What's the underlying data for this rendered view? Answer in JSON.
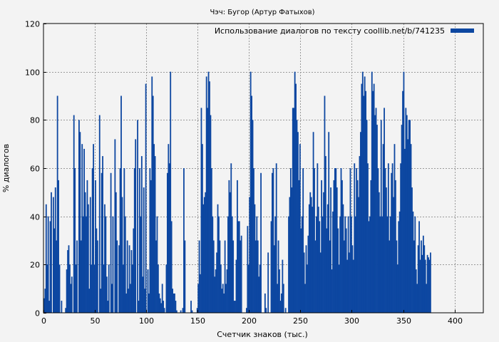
{
  "chart_data": {
    "type": "bar",
    "title": "Чэч: Бугор (Артур Фатыхов)",
    "xlabel": "Счетчик знаков (тыс.)",
    "ylabel": "% диалогов",
    "xlim": [
      0,
      428
    ],
    "ylim": [
      0,
      120
    ],
    "xticks": [
      "0",
      "50",
      "100",
      "150",
      "200",
      "250",
      "300",
      "350",
      "400"
    ],
    "xtick_values": [
      0,
      50,
      100,
      150,
      200,
      250,
      300,
      350,
      400
    ],
    "yticks": [
      "0",
      "20",
      "40",
      "60",
      "80",
      "100",
      "120"
    ],
    "ytick_values": [
      0,
      20,
      40,
      60,
      80,
      100,
      120
    ],
    "grid": true,
    "legend_position": "top-right",
    "series": [
      {
        "name": "Использование диалогов по тексту coollib.net/b/741235",
        "color": "#0d47a1",
        "x_start": 0,
        "x_step": 1,
        "values": [
          6,
          10,
          45,
          20,
          40,
          5,
          38,
          50,
          0,
          48,
          35,
          52,
          30,
          90,
          55,
          20,
          0,
          5,
          0,
          0,
          0,
          2,
          18,
          26,
          28,
          20,
          12,
          15,
          0,
          82,
          60,
          20,
          30,
          0,
          80,
          75,
          30,
          70,
          40,
          68,
          50,
          40,
          55,
          45,
          10,
          48,
          20,
          60,
          70,
          20,
          55,
          35,
          30,
          0,
          82,
          10,
          58,
          65,
          20,
          45,
          40,
          15,
          5,
          20,
          0,
          58,
          12,
          40,
          0,
          72,
          50,
          30,
          0,
          28,
          60,
          90,
          48,
          20,
          60,
          40,
          8,
          30,
          10,
          28,
          12,
          26,
          20,
          35,
          60,
          72,
          0,
          80,
          5,
          60,
          40,
          65,
          15,
          52,
          10,
          95,
          0,
          18,
          8,
          60,
          55,
          98,
          90,
          70,
          65,
          30,
          40,
          20,
          8,
          6,
          4,
          12,
          5,
          2,
          0,
          20,
          58,
          70,
          62,
          100,
          38,
          10,
          8,
          8,
          5,
          1,
          0,
          0,
          0,
          1,
          0,
          2,
          60,
          30,
          0,
          0,
          0,
          0,
          0,
          5,
          1,
          0,
          0,
          0,
          0,
          2,
          12,
          30,
          16,
          85,
          70,
          45,
          48,
          50,
          98,
          85,
          100,
          96,
          82,
          60,
          40,
          30,
          15,
          18,
          25,
          45,
          40,
          30,
          20,
          10,
          12,
          8,
          30,
          12,
          18,
          40,
          55,
          50,
          62,
          40,
          30,
          5,
          5,
          22,
          55,
          38,
          38,
          30,
          32,
          0,
          0,
          0,
          0,
          2,
          36,
          20,
          48,
          100,
          90,
          80,
          60,
          45,
          30,
          40,
          30,
          15,
          20,
          58,
          0,
          0,
          0,
          8,
          2,
          0,
          25,
          0,
          0,
          38,
          58,
          60,
          28,
          40,
          62,
          12,
          30,
          18,
          5,
          8,
          22,
          12,
          0,
          2,
          0,
          0,
          40,
          48,
          60,
          52,
          85,
          85,
          100,
          95,
          80,
          75,
          55,
          70,
          35,
          40,
          60,
          25,
          12,
          28,
          20,
          32,
          45,
          50,
          48,
          44,
          75,
          60,
          30,
          40,
          62,
          44,
          38,
          25,
          55,
          40,
          50,
          90,
          65,
          35,
          45,
          75,
          30,
          52,
          18,
          42,
          55,
          60,
          60,
          52,
          35,
          20,
          40,
          60,
          55,
          45,
          30,
          40,
          35,
          22,
          40,
          25,
          60,
          40,
          28,
          22,
          62,
          40,
          60,
          55,
          48,
          65,
          75,
          95,
          100,
          90,
          98,
          92,
          80,
          62,
          38,
          40,
          55,
          100,
          92,
          95,
          82,
          85,
          78,
          60,
          50,
          40,
          80,
          40,
          70,
          85,
          60,
          52,
          40,
          62,
          30,
          40,
          58,
          62,
          48,
          70,
          55,
          30,
          20,
          38,
          42,
          62,
          78,
          92,
          100,
          68,
          85,
          82,
          72,
          80,
          80,
          70,
          52,
          42,
          30,
          40,
          18,
          12,
          28,
          38,
          22,
          30,
          24,
          32,
          28,
          22,
          12,
          24,
          23,
          22,
          25
        ]
      }
    ]
  }
}
